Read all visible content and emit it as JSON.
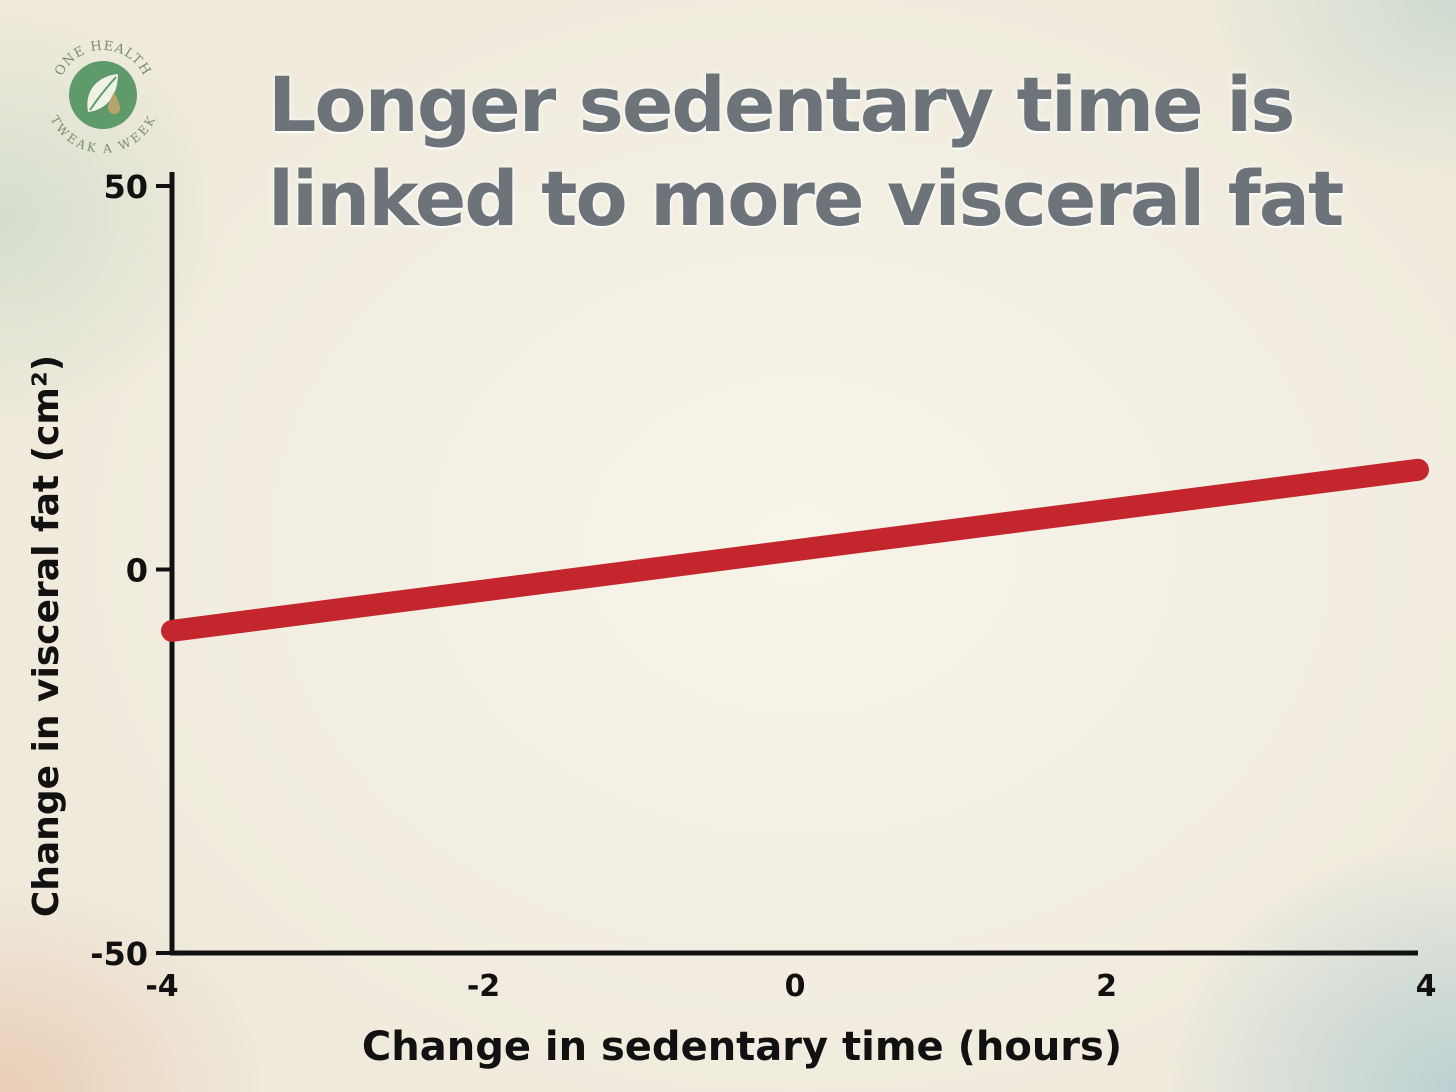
{
  "brand": {
    "logo_top_text": "ONE HEALTH",
    "logo_bottom_text": "TWEAK A WEEK",
    "leaf_color": "#5e9a6a",
    "ring_color": "#7a8f6a"
  },
  "chart_data": {
    "type": "line",
    "title_lines": [
      "Longer sedentary time is",
      "linked to more visceral fat"
    ],
    "xlabel": "Change in sedentary time (hours)",
    "ylabel": "Change in visceral fat (cm²)",
    "xlim": [
      -4,
      4
    ],
    "ylim": [
      -50,
      50
    ],
    "x_ticks": [
      "-4",
      "-2",
      "0",
      "2",
      "4"
    ],
    "y_ticks": [
      "50",
      "0",
      "-50"
    ],
    "grid": false,
    "series": [
      {
        "x": [
          -4,
          4
        ],
        "y": [
          -8,
          13
        ],
        "color": "#c4262e"
      }
    ]
  }
}
